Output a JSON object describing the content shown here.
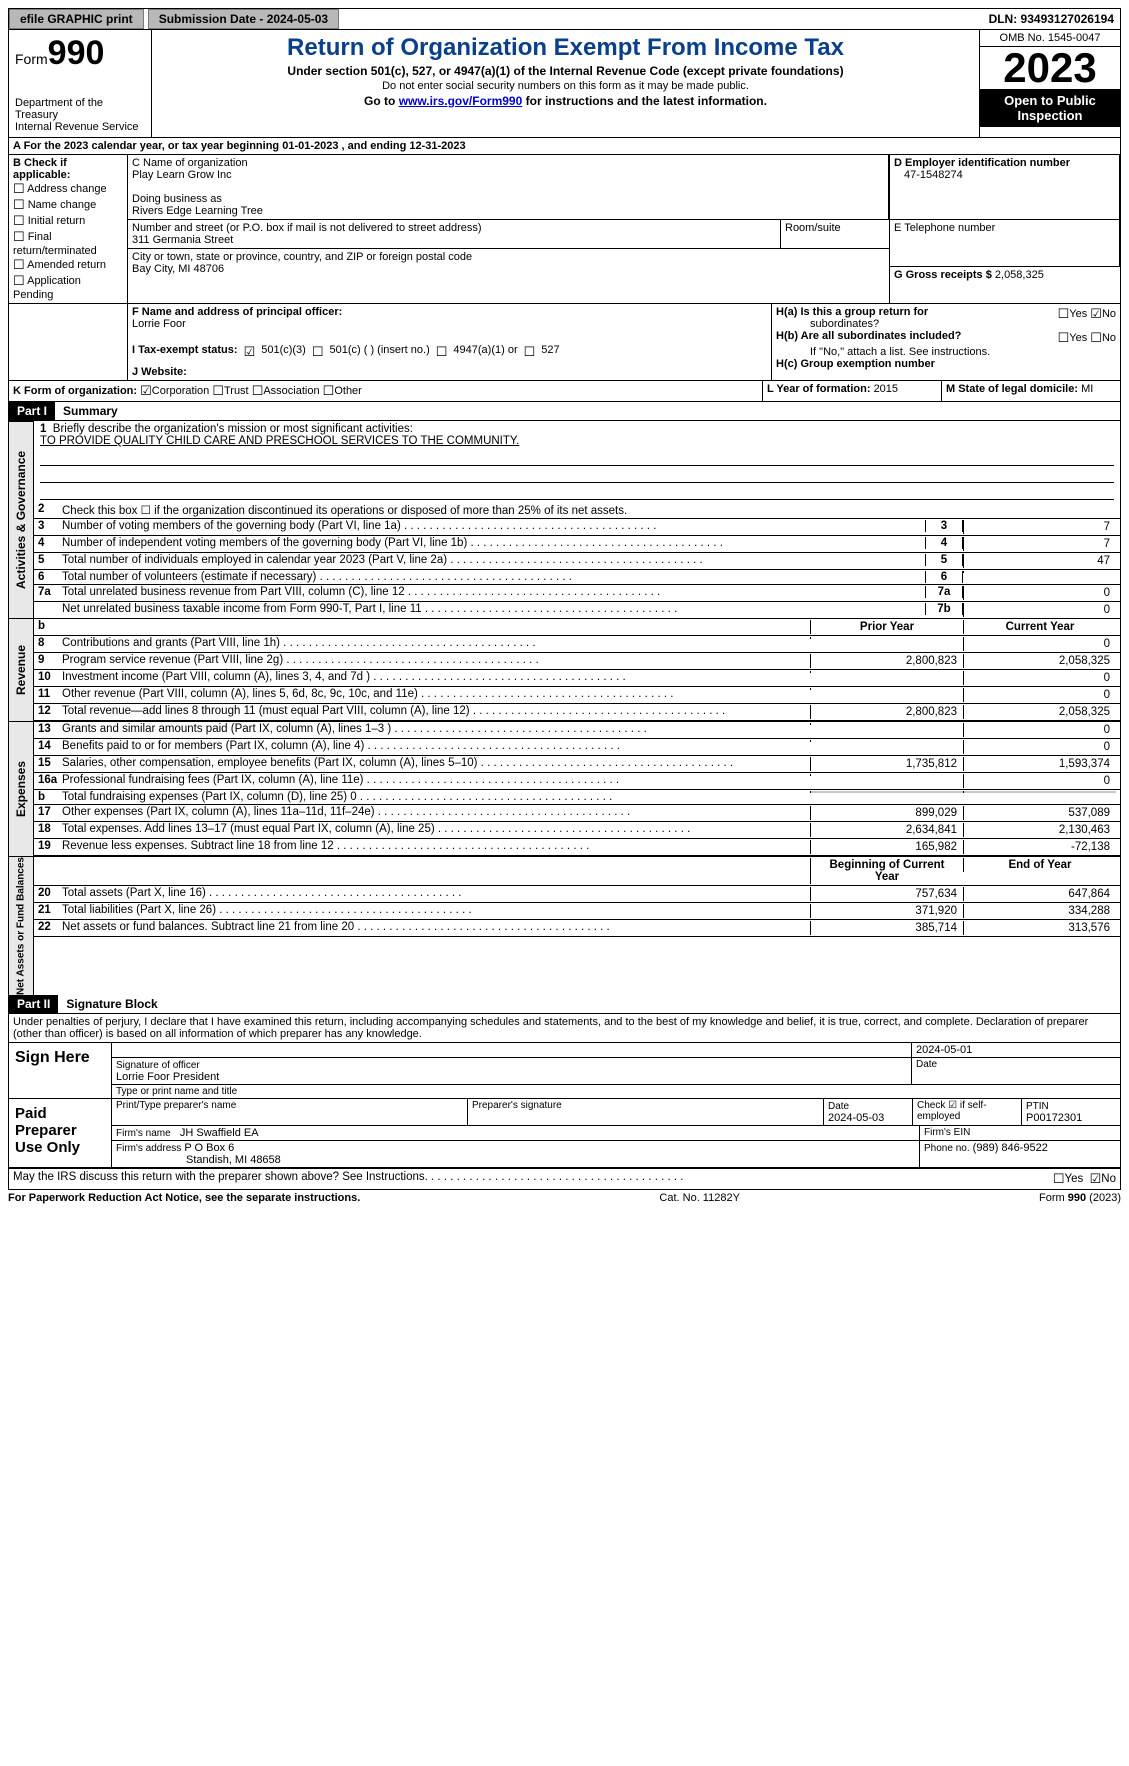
{
  "topbar": {
    "efile": "efile GRAPHIC print",
    "sub_label": "Submission Date - 2024-05-03",
    "dln": "DLN: 93493127026194"
  },
  "header": {
    "form_label": "Form",
    "form_num": "990",
    "dept": "Department of the Treasury",
    "irs": "Internal Revenue Service",
    "title": "Return of Organization Exempt From Income Tax",
    "sub": "Under section 501(c), 527, or 4947(a)(1) of the Internal Revenue Code (except private foundations)",
    "note1": "Do not enter social security numbers on this form as it may be made public.",
    "note2_pre": "Go to ",
    "note2_link": "www.irs.gov/Form990",
    "note2_post": " for instructions and the latest information.",
    "omb": "OMB No. 1545-0047",
    "year": "2023",
    "open": "Open to Public Inspection"
  },
  "periodA": {
    "pre": "A For the 2023 calendar year, or tax year beginning ",
    "begin": "01-01-2023",
    "mid": " , and ending ",
    "end": "12-31-2023"
  },
  "boxB": {
    "label": "B Check if applicable:",
    "items": [
      "Address change",
      "Name change",
      "Initial return",
      "Final return/terminated",
      "Amended return",
      "Application Pending"
    ]
  },
  "boxC": {
    "label": "C Name of organization",
    "name": "Play Learn Grow Inc",
    "dba_label": "Doing business as",
    "dba": "Rivers Edge Learning Tree",
    "street_label": "Number and street (or P.O. box if mail is not delivered to street address)",
    "street": "311 Germania Street",
    "room_label": "Room/suite",
    "city_label": "City or town, state or province, country, and ZIP or foreign postal code",
    "city": "Bay City, MI  48706"
  },
  "boxD": {
    "label": "D Employer identification number",
    "ein": "47-1548274"
  },
  "boxE": {
    "label": "E Telephone number"
  },
  "boxG": {
    "label": "G Gross receipts $ ",
    "val": "2,058,325"
  },
  "boxF": {
    "label": "F  Name and address of principal officer:",
    "name": "Lorrie Foor"
  },
  "boxH": {
    "a": "H(a)  Is this a group return for",
    "a2": "subordinates?",
    "b": "H(b)  Are all subordinates included?",
    "bnote": "If \"No,\" attach a list. See instructions.",
    "c": "H(c)  Group exemption number"
  },
  "yn": {
    "yes": "Yes",
    "no": "No"
  },
  "boxI": {
    "label": "I   Tax-exempt status:",
    "o1": "501(c)(3)",
    "o2": "501(c) (  ) (insert no.)",
    "o3": "4947(a)(1) or",
    "o4": "527"
  },
  "boxJ": {
    "label": "J   Website:"
  },
  "boxK": {
    "label": "K Form of organization:",
    "o1": "Corporation",
    "o2": "Trust",
    "o3": "Association",
    "o4": "Other"
  },
  "boxL": {
    "label": "L Year of formation: ",
    "val": "2015"
  },
  "boxM": {
    "label": "M State of legal domicile: ",
    "val": "MI"
  },
  "part1": {
    "hdr": "Part I",
    "title": "Summary"
  },
  "sectA": {
    "label": "Activities & Governance",
    "l1": {
      "n": "1",
      "t": "Briefly describe the organization's mission or most significant activities:",
      "mission": "TO PROVIDE QUALITY CHILD CARE AND PRESCHOOL SERVICES TO THE COMMUNITY."
    },
    "l2": {
      "n": "2",
      "t": "Check this box ☐ if the organization discontinued its operations or disposed of more than 25% of its net assets."
    },
    "rows": [
      {
        "n": "3",
        "t": "Number of voting members of the governing body (Part VI, line 1a)",
        "box": "3",
        "v": "7"
      },
      {
        "n": "4",
        "t": "Number of independent voting members of the governing body (Part VI, line 1b)",
        "box": "4",
        "v": "7"
      },
      {
        "n": "5",
        "t": "Total number of individuals employed in calendar year 2023 (Part V, line 2a)",
        "box": "5",
        "v": "47"
      },
      {
        "n": "6",
        "t": "Total number of volunteers (estimate if necessary)",
        "box": "6",
        "v": ""
      },
      {
        "n": "7a",
        "t": "Total unrelated business revenue from Part VIII, column (C), line 12",
        "box": "7a",
        "v": "0"
      },
      {
        "n": "",
        "t": "Net unrelated business taxable income from Form 990-T, Part I, line 11",
        "box": "7b",
        "v": "0"
      }
    ]
  },
  "tblHdr": {
    "b": "b",
    "py": "Prior Year",
    "cy": "Current Year"
  },
  "sectRev": {
    "label": "Revenue",
    "rows": [
      {
        "n": "8",
        "t": "Contributions and grants (Part VIII, line 1h)",
        "py": "",
        "cy": "0"
      },
      {
        "n": "9",
        "t": "Program service revenue (Part VIII, line 2g)",
        "py": "2,800,823",
        "cy": "2,058,325"
      },
      {
        "n": "10",
        "t": "Investment income (Part VIII, column (A), lines 3, 4, and 7d )",
        "py": "",
        "cy": "0"
      },
      {
        "n": "11",
        "t": "Other revenue (Part VIII, column (A), lines 5, 6d, 8c, 9c, 10c, and 11e)",
        "py": "",
        "cy": "0"
      },
      {
        "n": "12",
        "t": "Total revenue—add lines 8 through 11 (must equal Part VIII, column (A), line 12)",
        "py": "2,800,823",
        "cy": "2,058,325"
      }
    ]
  },
  "sectExp": {
    "label": "Expenses",
    "rows": [
      {
        "n": "13",
        "t": "Grants and similar amounts paid (Part IX, column (A), lines 1–3 )",
        "py": "",
        "cy": "0"
      },
      {
        "n": "14",
        "t": "Benefits paid to or for members (Part IX, column (A), line 4)",
        "py": "",
        "cy": "0"
      },
      {
        "n": "15",
        "t": "Salaries, other compensation, employee benefits (Part IX, column (A), lines 5–10)",
        "py": "1,735,812",
        "cy": "1,593,374"
      },
      {
        "n": "16a",
        "t": "Professional fundraising fees (Part IX, column (A), line 11e)",
        "py": "",
        "cy": "0"
      },
      {
        "n": "b",
        "t": "Total fundraising expenses (Part IX, column (D), line 25) 0",
        "py": "GREY",
        "cy": "GREY"
      },
      {
        "n": "17",
        "t": "Other expenses (Part IX, column (A), lines 11a–11d, 11f–24e)",
        "py": "899,029",
        "cy": "537,089"
      },
      {
        "n": "18",
        "t": "Total expenses. Add lines 13–17 (must equal Part IX, column (A), line 25)",
        "py": "2,634,841",
        "cy": "2,130,463"
      },
      {
        "n": "19",
        "t": "Revenue less expenses. Subtract line 18 from line 12",
        "py": "165,982",
        "cy": "-72,138"
      }
    ]
  },
  "tblHdr2": {
    "py": "Beginning of Current Year",
    "cy": "End of Year"
  },
  "sectNA": {
    "label": "Net Assets or Fund Balances",
    "rows": [
      {
        "n": "20",
        "t": "Total assets (Part X, line 16)",
        "py": "757,634",
        "cy": "647,864"
      },
      {
        "n": "21",
        "t": "Total liabilities (Part X, line 26)",
        "py": "371,920",
        "cy": "334,288"
      },
      {
        "n": "22",
        "t": "Net assets or fund balances. Subtract line 21 from line 20",
        "py": "385,714",
        "cy": "313,576"
      }
    ]
  },
  "part2": {
    "hdr": "Part II",
    "title": "Signature Block",
    "decl": "Under penalties of perjury, I declare that I have examined this return, including accompanying schedules and statements, and to the best of my knowledge and belief, it is true, correct, and complete. Declaration of preparer (other than officer) is based on all information of which preparer has any knowledge."
  },
  "sign": {
    "here": "Sign Here",
    "sig_label": "Signature of officer",
    "officer": "Lorrie Foor President",
    "type_label": "Type or print name and title",
    "date_label": "Date",
    "date": "2024-05-01"
  },
  "paid": {
    "label": "Paid Preparer Use Only",
    "name_label": "Print/Type preparer's name",
    "sig_label": "Preparer's signature",
    "date_label": "Date",
    "date": "2024-05-03",
    "check_label": "Check ☑ if self-employed",
    "ptin_label": "PTIN",
    "ptin": "P00172301",
    "firm_label": "Firm's name",
    "firm": "JH Swaffield EA",
    "ein_label": "Firm's EIN",
    "addr_label": "Firm's address",
    "addr1": "P O Box 6",
    "addr2": "Standish, MI  48658",
    "phone_label": "Phone no.",
    "phone": "(989) 846-9522"
  },
  "discuss": {
    "t": "May the IRS discuss this return with the preparer shown above? See Instructions."
  },
  "footer": {
    "l": "For Paperwork Reduction Act Notice, see the separate instructions.",
    "c": "Cat. No. 11282Y",
    "r": "Form 990 (2023)"
  }
}
